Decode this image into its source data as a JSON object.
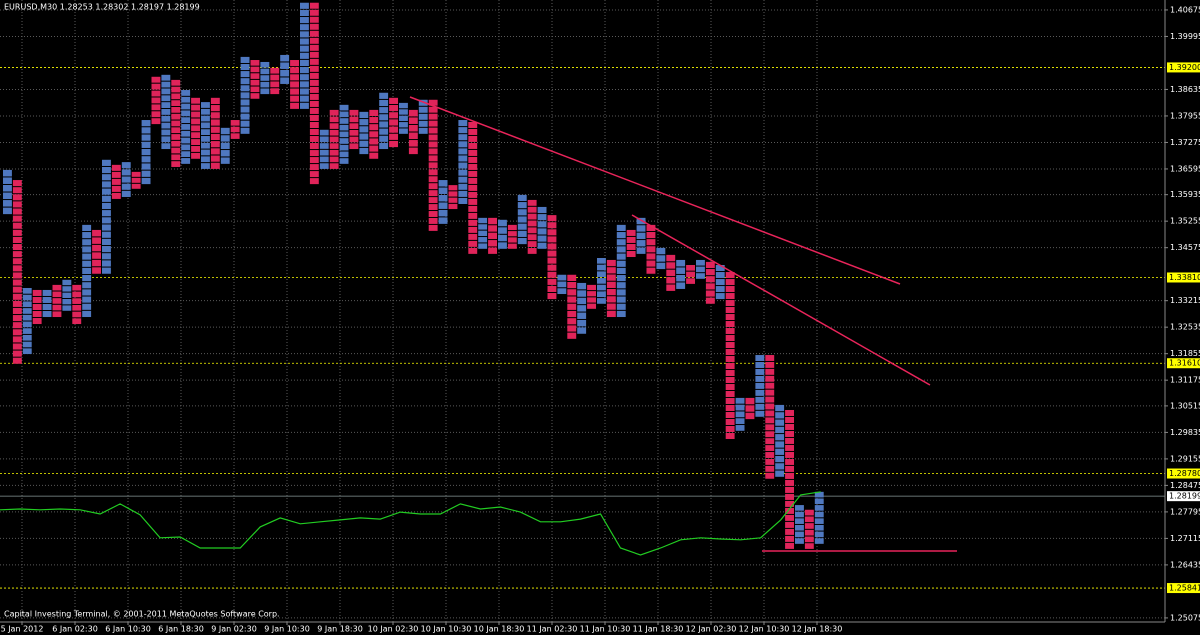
{
  "chart_data": {
    "type": "pointfigure",
    "title": "EURUSD,M30  1.28253 1.28302 1.28197 1.28199",
    "footer": "Capital Investing Terminal, © 2001-2011 MetaQuotes Software Corp.",
    "ylim": [
      1.2497,
      1.4093
    ],
    "yticks": [
      1.40675,
      1.39995,
      1.38635,
      1.37955,
      1.37275,
      1.36595,
      1.35935,
      1.35255,
      1.34575,
      1.33215,
      1.32535,
      1.31855,
      1.31175,
      1.30515,
      1.29835,
      1.29155,
      1.28475,
      1.27795,
      1.27115,
      1.26435,
      1.25075
    ],
    "grid": true,
    "categories": [
      "5 Jan 2012",
      "6 Jan 02:30",
      "6 Jan 10:30",
      "6 Jan 18:30",
      "9 Jan 02:30",
      "9 Jan 10:30",
      "9 Jan 18:30",
      "10 Jan 02:30",
      "10 Jan 10:30",
      "10 Jan 18:30",
      "11 Jan 02:30",
      "11 Jan 10:30",
      "11 Jan 18:30",
      "12 Jan 02:30",
      "12 Jan 10:30",
      "12 Jan 18:30"
    ],
    "box_size": 0.0018,
    "up_color": "#4f78c0",
    "down_color": "#e0245a",
    "columns": [
      {
        "up": true,
        "low": 1.3541,
        "high": 1.3657
      },
      {
        "up": false,
        "low": 1.3157,
        "high": 1.3631
      },
      {
        "up": true,
        "low": 1.3182,
        "high": 1.3354
      },
      {
        "up": false,
        "low": 1.3259,
        "high": 1.3349
      },
      {
        "up": true,
        "low": 1.3277,
        "high": 1.3349
      },
      {
        "up": false,
        "low": 1.3277,
        "high": 1.3362
      },
      {
        "up": true,
        "low": 1.3293,
        "high": 1.3375
      },
      {
        "up": false,
        "low": 1.3259,
        "high": 1.3362
      },
      {
        "up": true,
        "low": 1.3277,
        "high": 1.3516
      },
      {
        "up": false,
        "low": 1.3388,
        "high": 1.3503
      },
      {
        "up": true,
        "low": 1.3388,
        "high": 1.3683
      },
      {
        "up": false,
        "low": 1.358,
        "high": 1.367
      },
      {
        "up": true,
        "low": 1.3585,
        "high": 1.3677
      },
      {
        "up": false,
        "low": 1.3606,
        "high": 1.3652
      },
      {
        "up": true,
        "low": 1.3618,
        "high": 1.3785
      },
      {
        "up": false,
        "low": 1.3772,
        "high": 1.3896
      },
      {
        "up": true,
        "low": 1.3708,
        "high": 1.3901
      },
      {
        "up": false,
        "low": 1.3662,
        "high": 1.3888
      },
      {
        "up": true,
        "low": 1.367,
        "high": 1.3862
      },
      {
        "up": false,
        "low": 1.3683,
        "high": 1.3842
      },
      {
        "up": true,
        "low": 1.3657,
        "high": 1.3831
      },
      {
        "up": false,
        "low": 1.3657,
        "high": 1.3842
      },
      {
        "up": true,
        "low": 1.367,
        "high": 1.3765
      },
      {
        "up": false,
        "low": 1.3734,
        "high": 1.3785
      },
      {
        "up": true,
        "low": 1.3747,
        "high": 1.3947
      },
      {
        "up": false,
        "low": 1.3837,
        "high": 1.3939
      },
      {
        "up": true,
        "low": 1.3849,
        "high": 1.3934
      },
      {
        "up": false,
        "low": 1.3849,
        "high": 1.3919
      },
      {
        "up": true,
        "low": 1.3875,
        "high": 1.3952
      },
      {
        "up": false,
        "low": 1.3811,
        "high": 1.3939
      },
      {
        "up": true,
        "low": 1.3811,
        "high": 1.4086
      },
      {
        "up": false,
        "low": 1.3618,
        "high": 1.4086
      },
      {
        "up": true,
        "low": 1.3657,
        "high": 1.376
      },
      {
        "up": false,
        "low": 1.3657,
        "high": 1.3811
      },
      {
        "up": true,
        "low": 1.367,
        "high": 1.3824
      },
      {
        "up": false,
        "low": 1.3708,
        "high": 1.3811
      },
      {
        "up": true,
        "low": 1.3695,
        "high": 1.3806
      },
      {
        "up": false,
        "low": 1.3683,
        "high": 1.3811
      },
      {
        "up": true,
        "low": 1.3708,
        "high": 1.3855
      },
      {
        "up": false,
        "low": 1.3713,
        "high": 1.3842
      },
      {
        "up": true,
        "low": 1.3747,
        "high": 1.3829
      },
      {
        "up": false,
        "low": 1.3695,
        "high": 1.3811
      },
      {
        "up": true,
        "low": 1.3747,
        "high": 1.3837
      },
      {
        "up": false,
        "low": 1.3498,
        "high": 1.3837
      },
      {
        "up": true,
        "low": 1.3516,
        "high": 1.3631
      },
      {
        "up": false,
        "low": 1.3554,
        "high": 1.3618
      },
      {
        "up": true,
        "low": 1.3567,
        "high": 1.3785
      },
      {
        "up": false,
        "low": 1.3439,
        "high": 1.378
      },
      {
        "up": true,
        "low": 1.3452,
        "high": 1.3534
      },
      {
        "up": false,
        "low": 1.3439,
        "high": 1.3534
      },
      {
        "up": true,
        "low": 1.3452,
        "high": 1.3529
      },
      {
        "up": false,
        "low": 1.3452,
        "high": 1.3516
      },
      {
        "up": true,
        "low": 1.3464,
        "high": 1.3593
      },
      {
        "up": false,
        "low": 1.3439,
        "high": 1.358
      },
      {
        "up": true,
        "low": 1.3452,
        "high": 1.3562
      },
      {
        "up": false,
        "low": 1.3323,
        "high": 1.3541
      },
      {
        "up": true,
        "low": 1.3336,
        "high": 1.3388
      },
      {
        "up": false,
        "low": 1.3221,
        "high": 1.3388
      },
      {
        "up": true,
        "low": 1.3234,
        "high": 1.3367
      },
      {
        "up": false,
        "low": 1.3298,
        "high": 1.3362
      },
      {
        "up": true,
        "low": 1.3311,
        "high": 1.3431
      },
      {
        "up": false,
        "low": 1.3277,
        "high": 1.3426
      },
      {
        "up": true,
        "low": 1.3277,
        "high": 1.3516
      },
      {
        "up": false,
        "low": 1.3431,
        "high": 1.3503
      },
      {
        "up": true,
        "low": 1.3439,
        "high": 1.3534
      },
      {
        "up": false,
        "low": 1.3388,
        "high": 1.3516
      },
      {
        "up": true,
        "low": 1.34,
        "high": 1.3457
      },
      {
        "up": false,
        "low": 1.3344,
        "high": 1.3439
      },
      {
        "up": true,
        "low": 1.3349,
        "high": 1.3426
      },
      {
        "up": false,
        "low": 1.3362,
        "high": 1.3413
      },
      {
        "up": true,
        "low": 1.3375,
        "high": 1.3426
      },
      {
        "up": false,
        "low": 1.3311,
        "high": 1.3421
      },
      {
        "up": true,
        "low": 1.3323,
        "high": 1.3413
      },
      {
        "up": false,
        "low": 1.2964,
        "high": 1.3395
      },
      {
        "up": true,
        "low": 1.2985,
        "high": 1.3072
      },
      {
        "up": false,
        "low": 1.3015,
        "high": 1.3072
      },
      {
        "up": true,
        "low": 1.3021,
        "high": 1.3182
      },
      {
        "up": false,
        "low": 1.2862,
        "high": 1.3182
      },
      {
        "up": true,
        "low": 1.2867,
        "high": 1.3054
      },
      {
        "up": false,
        "low": 1.2682,
        "high": 1.3041
      },
      {
        "up": true,
        "low": 1.2695,
        "high": 1.2797
      },
      {
        "up": false,
        "low": 1.2682,
        "high": 1.2785
      },
      {
        "up": true,
        "low": 1.2695,
        "high": 1.2831
      }
    ],
    "indicator": {
      "color": "#22cc22",
      "values": [
        1.2785,
        1.2787,
        1.2785,
        1.2787,
        1.2785,
        1.2774,
        1.28,
        1.2772,
        1.2713,
        1.2715,
        1.2687,
        1.2687,
        1.2687,
        1.2741,
        1.2764,
        1.2749,
        1.2754,
        1.2759,
        1.2764,
        1.2761,
        1.2779,
        1.2774,
        1.2774,
        1.28,
        1.2787,
        1.2792,
        1.2779,
        1.2754,
        1.2754,
        1.2761,
        1.2774,
        1.2687,
        1.2669,
        1.2687,
        1.2708,
        1.2713,
        1.271,
        1.2708,
        1.2713,
        1.2759,
        1.2823,
        1.2831
      ]
    },
    "levels": [
      {
        "value": 1.392,
        "label": "1.39200"
      },
      {
        "value": 1.3381,
        "label": "1.33810"
      },
      {
        "value": 1.3161,
        "label": "1.31610"
      },
      {
        "value": 1.2878,
        "label": "1.28780"
      },
      1.25841
    ],
    "level_color": "#ffff00",
    "current": 1.28199
  }
}
